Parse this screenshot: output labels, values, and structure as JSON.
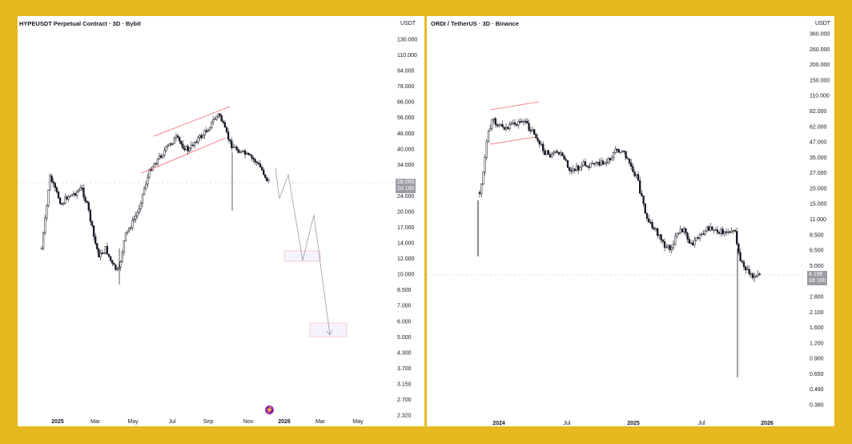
{
  "left_chart": {
    "title": "HYPEUSDT Perpetual Contract · 3D · Bybit",
    "currency": "USDT",
    "price_label": "28.060",
    "countdown": "2d 16h",
    "y_ticks": [
      "130.000",
      "110.000",
      "94.000",
      "78.000",
      "66.000",
      "56.000",
      "48.000",
      "40.000",
      "34.000",
      "28.060",
      "24.000",
      "20.000",
      "17.000",
      "14.000",
      "12.000",
      "10.000",
      "8.500",
      "7.000",
      "6.000",
      "5.000",
      "4.300",
      "3.700",
      "3.150",
      "2.700",
      "2.320"
    ],
    "x_ticks": [
      "2025",
      "Mar",
      "May",
      "Jul",
      "Sep",
      "Nov",
      "2026",
      "Mar",
      "May"
    ],
    "logo_glyph": "⚡"
  },
  "right_chart": {
    "title": "ORDI / TetherUS · 3D · Binance",
    "currency": "USDT",
    "price_label": "4.198",
    "countdown": "2d 16h",
    "y_ticks": [
      "360.000",
      "260.000",
      "200.000",
      "150.000",
      "110.000",
      "82.000",
      "62.000",
      "47.000",
      "35.000",
      "27.000",
      "20.000",
      "15.000",
      "11.000",
      "8.500",
      "6.500",
      "5.000",
      "4.198",
      "2.800",
      "2.100",
      "1.600",
      "1.200",
      "0.900",
      "0.650",
      "0.490",
      "0.380"
    ],
    "x_ticks": [
      "2024",
      "Jul",
      "2025",
      "Jul",
      "2026"
    ]
  },
  "colors": {
    "frame": "#e6b91e",
    "candle": "#131722",
    "channel": "#f23645",
    "projection": "#9a9ba3",
    "target_box": "#7b61ff"
  },
  "chart_data": [
    {
      "type": "candlestick",
      "title": "HYPEUSDT Perpetual Contract · 3D · Bybit",
      "ylabel": "USDT",
      "y_scale": "log",
      "ylim": [
        2.32,
        130
      ],
      "x": [
        "2024-12",
        "2025-01",
        "2025-02",
        "2025-03",
        "2025-04",
        "2025-05",
        "2025-06",
        "2025-07",
        "2025-08",
        "2025-09",
        "2025-10",
        "2025-11",
        "2025-12"
      ],
      "close": [
        14.0,
        26.0,
        23.0,
        14.0,
        12.0,
        22.0,
        38.0,
        44.0,
        45.0,
        55.0,
        44.0,
        36.0,
        28.06
      ],
      "last_price": 28.06,
      "projection_path": [
        [
          "2025-12",
          28.06
        ],
        [
          "2025-12-20",
          23.0
        ],
        [
          "2026-01-05",
          30.0
        ],
        [
          "2026-01-25",
          13.0
        ],
        [
          "2026-02-15",
          18.5
        ],
        [
          "2026-03-15",
          6.0
        ]
      ],
      "target_zones": [
        [
          12.5,
          13.8
        ],
        [
          5.6,
          6.4
        ]
      ],
      "channel": "ascending"
    },
    {
      "type": "candlestick",
      "title": "ORDI / TetherUS · 3D · Binance",
      "ylabel": "USDT",
      "y_scale": "log",
      "ylim": [
        0.38,
        360
      ],
      "x": [
        "2023-11",
        "2023-12",
        "2024-01",
        "2024-03",
        "2024-05",
        "2024-07",
        "2024-09",
        "2024-11",
        "2024-12",
        "2025-02",
        "2025-04",
        "2025-06",
        "2025-08",
        "2025-10",
        "2025-11"
      ],
      "close": [
        9.0,
        22.0,
        65.0,
        60.0,
        45.0,
        33.0,
        34.0,
        44.0,
        22.0,
        9.5,
        7.0,
        9.5,
        9.0,
        5.0,
        4.198
      ],
      "last_price": 4.198,
      "wick_low": 0.65,
      "channel": "ascending"
    }
  ]
}
